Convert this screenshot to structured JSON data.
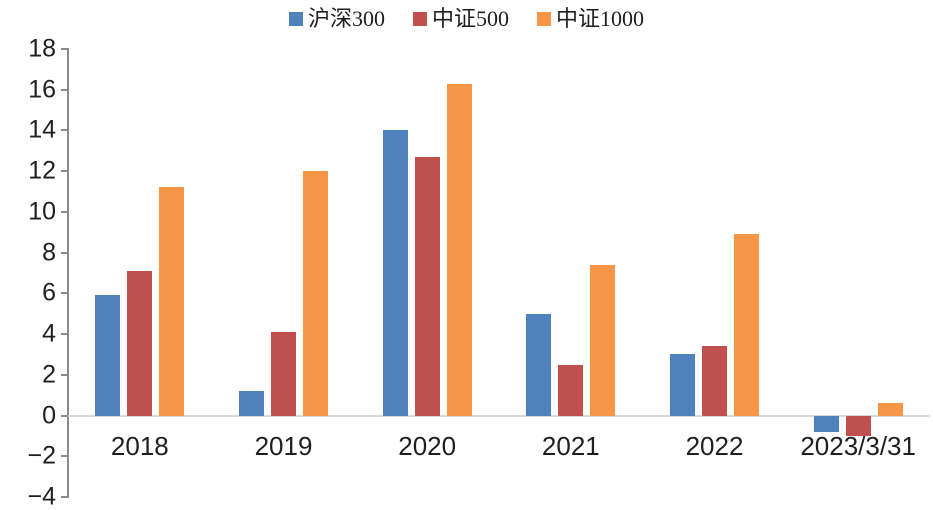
{
  "chart_data": {
    "type": "bar",
    "title": "",
    "xlabel": "",
    "ylabel": "",
    "categories": [
      "2018",
      "2019",
      "2020",
      "2021",
      "2022",
      "2023/3/31"
    ],
    "series": [
      {
        "name": "沪深300",
        "color": "#4F81BD",
        "values": [
          5.9,
          1.2,
          14.0,
          5.0,
          3.0,
          -0.8
        ]
      },
      {
        "name": "中证500",
        "color": "#C0504D",
        "values": [
          7.1,
          4.1,
          12.7,
          2.5,
          3.4,
          -1.0
        ]
      },
      {
        "name": "中证1000",
        "color": "#F79646",
        "values": [
          11.2,
          12.0,
          16.3,
          7.4,
          8.9,
          0.6
        ]
      }
    ],
    "ylim": [
      -4,
      18
    ],
    "ytick_step": 2,
    "y_tick_labels": [
      "18",
      "16",
      "14",
      "12",
      "10",
      "8",
      "6",
      "4",
      "2",
      "0",
      "−2",
      "−4"
    ],
    "legend_position": "top-center",
    "grid": false,
    "zero_line_shown": true,
    "colors": {
      "axis": "#8C8C8C",
      "zero_line": "#D9D9D9",
      "text": "#1F1F1F",
      "background": "#FFFFFF"
    }
  }
}
